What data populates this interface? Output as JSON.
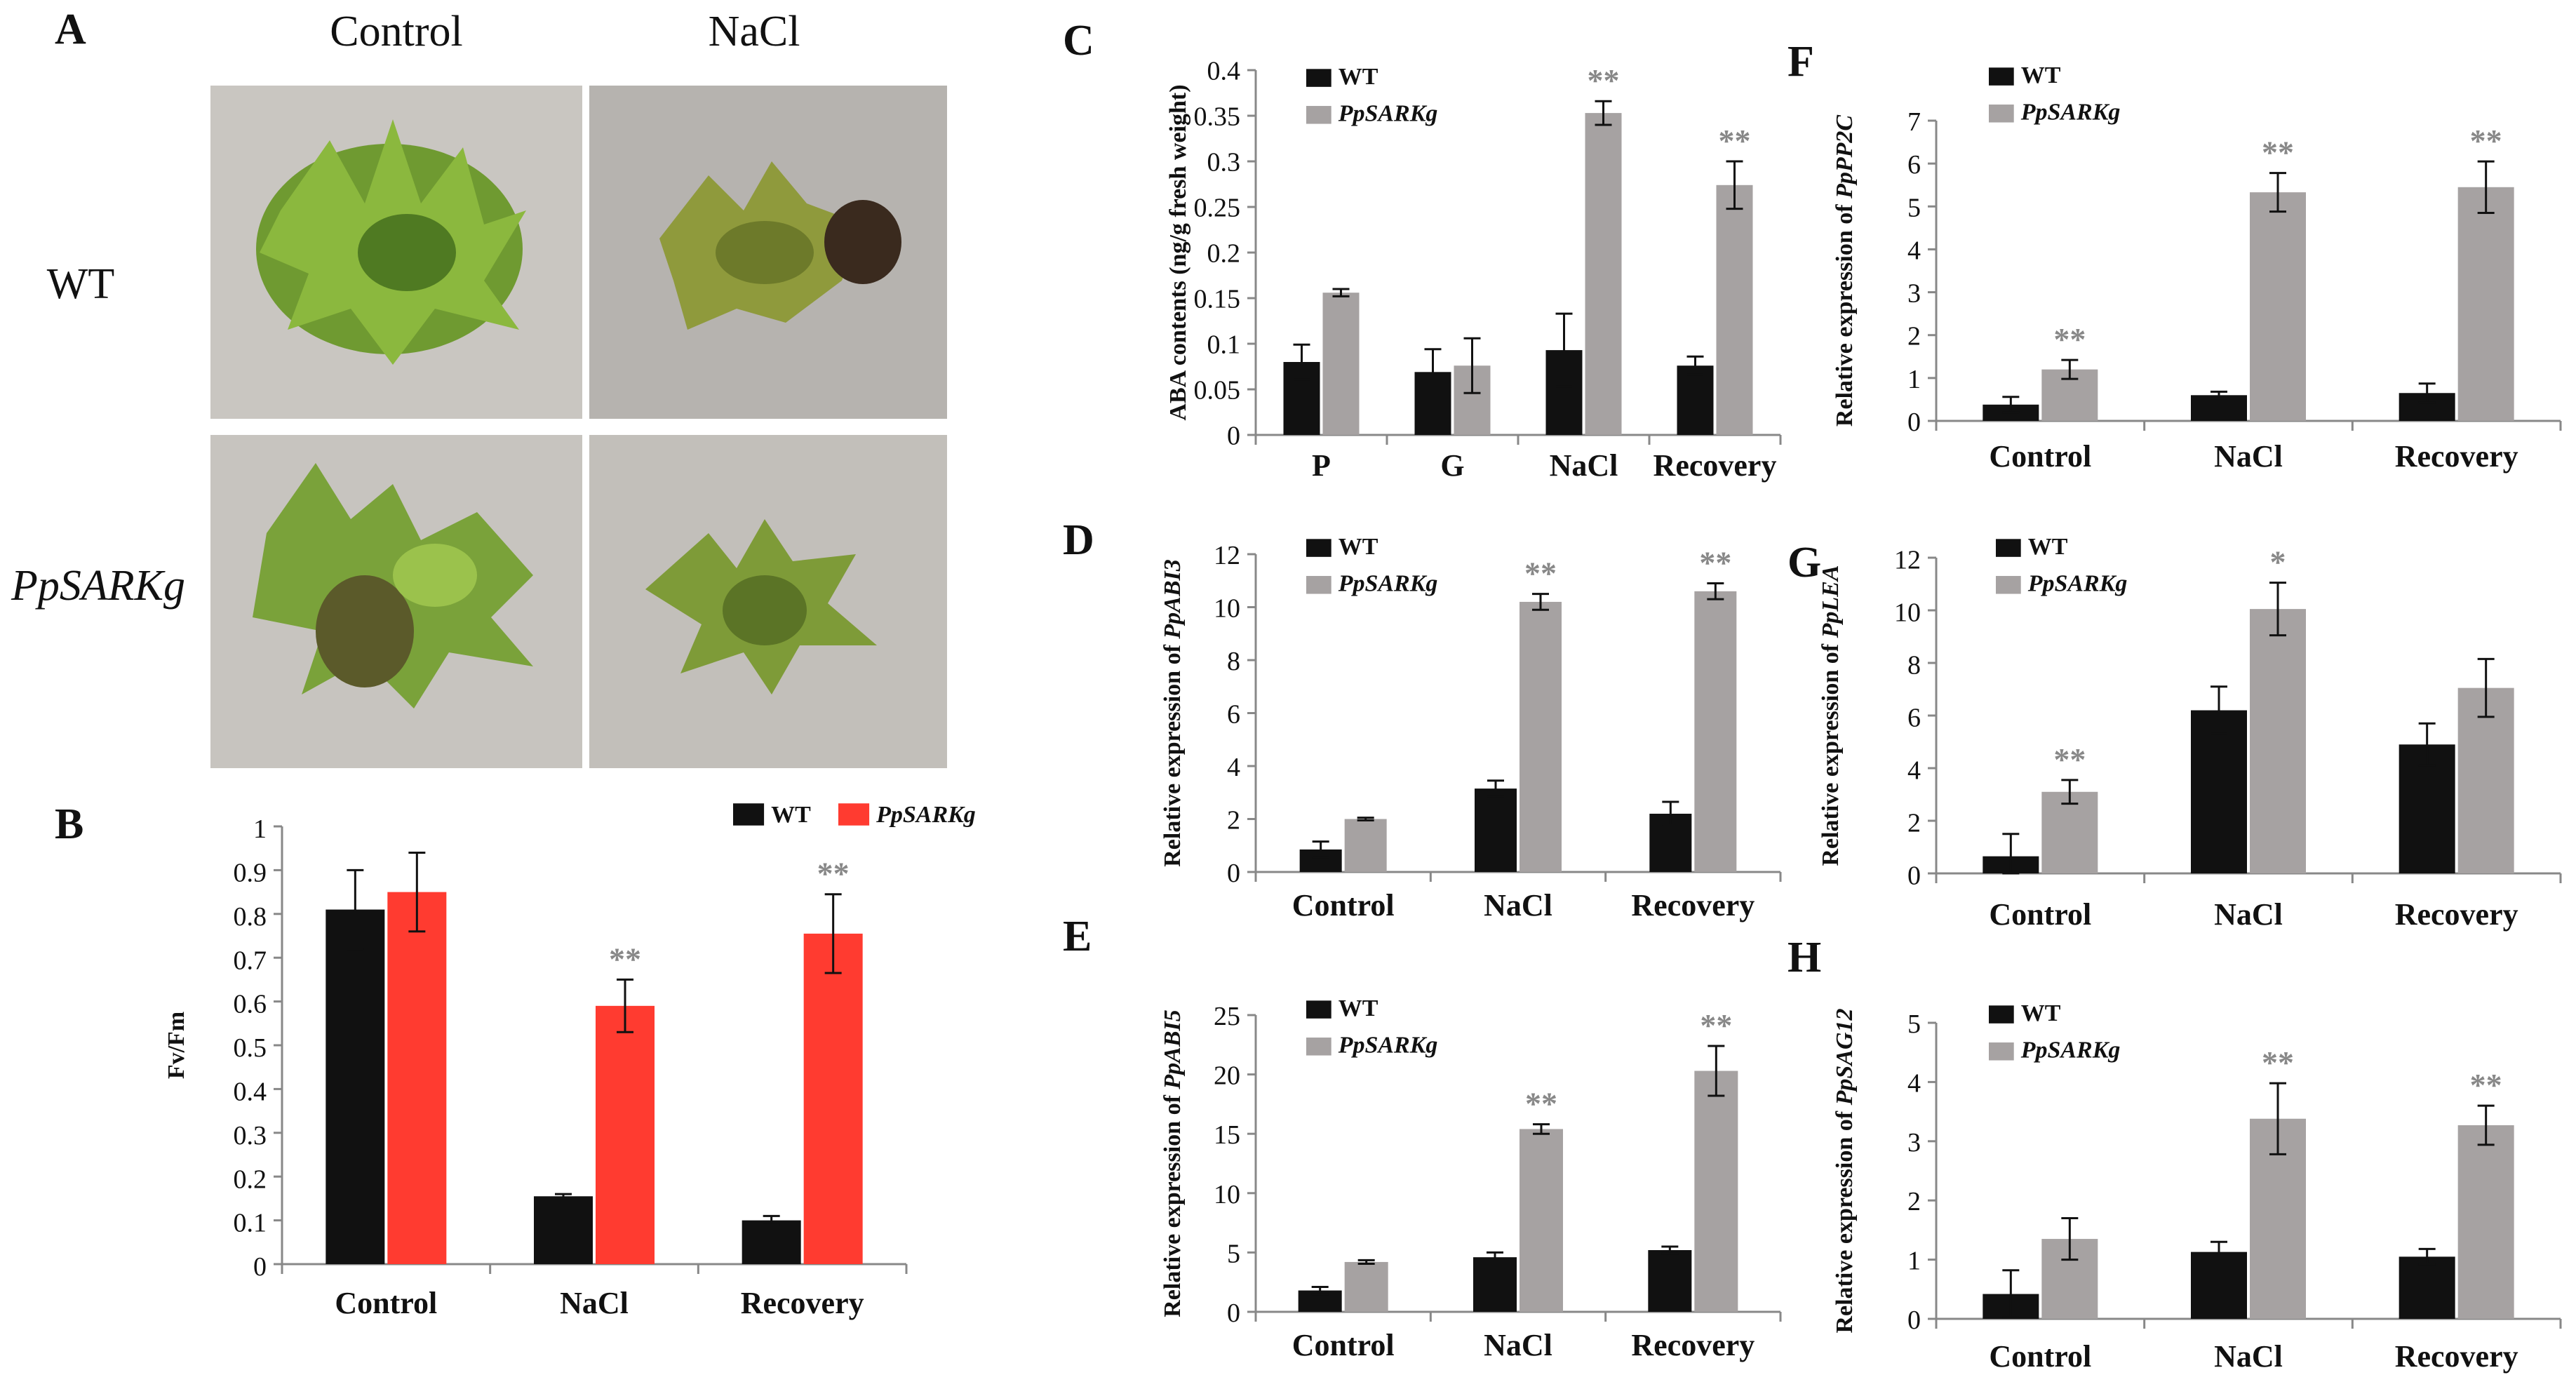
{
  "colors": {
    "wt": "#111111",
    "mutant_gray": "#a6a2a2",
    "mutant_red": "#ff3b30",
    "axis": "#888888",
    "sig": "#888888"
  },
  "photo_panel": {
    "label": "A",
    "col_labels": [
      "Control",
      "NaCl"
    ],
    "row_labels": [
      "WT",
      "PpSARKg"
    ]
  },
  "chart_data": [
    {
      "panel": "B",
      "type": "bar",
      "categories": [
        "Control",
        "NaCl",
        "Recovery"
      ],
      "series": [
        {
          "name": "WT",
          "values": [
            0.81,
            0.155,
            0.1
          ],
          "errors": [
            0.09,
            0.005,
            0.01
          ]
        },
        {
          "name": "PpSARKg",
          "values": [
            0.85,
            0.59,
            0.755
          ],
          "errors": [
            0.09,
            0.06,
            0.09
          ]
        }
      ],
      "significance": [
        "",
        "**",
        "**"
      ],
      "ylabel": "Fv/Fm",
      "ylabel_italic": "",
      "ylim": [
        0,
        1
      ],
      "yticks": [
        "0",
        "0.1",
        "0.2",
        "0.3",
        "0.4",
        "0.5",
        "0.6",
        "0.7",
        "0.8",
        "0.9",
        "1"
      ]
    },
    {
      "panel": "C",
      "type": "bar",
      "categories": [
        "P",
        "G",
        "NaCl",
        "Recovery"
      ],
      "series": [
        {
          "name": "WT",
          "values": [
            0.08,
            0.069,
            0.093,
            0.076
          ],
          "errors": [
            0.019,
            0.025,
            0.04,
            0.01
          ]
        },
        {
          "name": "PpSARKg",
          "values": [
            0.156,
            0.076,
            0.353,
            0.274
          ],
          "errors": [
            0.004,
            0.03,
            0.013,
            0.026
          ]
        }
      ],
      "significance": [
        "",
        "",
        "**",
        "**"
      ],
      "ylabel": "ABA contents (ng/g fresh weight)",
      "ylabel_italic": "",
      "ylim": [
        0,
        0.4
      ],
      "yticks": [
        "0",
        "0.05",
        "0.1",
        "0.15",
        "0.2",
        "0.25",
        "0.3",
        "0.35",
        "0.4"
      ]
    },
    {
      "panel": "D",
      "type": "bar",
      "categories": [
        "Control",
        "NaCl",
        "Recovery"
      ],
      "series": [
        {
          "name": "WT",
          "values": [
            0.85,
            3.15,
            2.2
          ],
          "errors": [
            0.3,
            0.3,
            0.45
          ]
        },
        {
          "name": "PpSARKg",
          "values": [
            2.0,
            10.2,
            10.6
          ],
          "errors": [
            0.05,
            0.3,
            0.3
          ]
        }
      ],
      "significance": [
        "",
        "**",
        "**"
      ],
      "ylabel": "Relative expression of ",
      "ylabel_italic": "PpABI3",
      "ylim": [
        0,
        12
      ],
      "yticks": [
        "0",
        "2",
        "4",
        "6",
        "8",
        "10",
        "12"
      ]
    },
    {
      "panel": "E",
      "type": "bar",
      "categories": [
        "Control",
        "NaCl",
        "Recovery"
      ],
      "series": [
        {
          "name": "WT",
          "values": [
            1.8,
            4.6,
            5.2
          ],
          "errors": [
            0.3,
            0.4,
            0.3
          ]
        },
        {
          "name": "PpSARKg",
          "values": [
            4.2,
            15.4,
            20.3
          ],
          "errors": [
            0.15,
            0.4,
            2.1
          ]
        }
      ],
      "significance": [
        "",
        "**",
        "**"
      ],
      "ylabel": "Relative expression of ",
      "ylabel_italic": "PpABI5",
      "ylim": [
        0,
        25
      ],
      "yticks": [
        "0",
        "5",
        "10",
        "15",
        "20",
        "25"
      ]
    },
    {
      "panel": "F",
      "type": "bar",
      "categories": [
        "Control",
        "NaCl",
        "Recovery"
      ],
      "series": [
        {
          "name": "WT",
          "values": [
            0.38,
            0.6,
            0.65
          ],
          "errors": [
            0.18,
            0.08,
            0.22
          ]
        },
        {
          "name": "PpSARKg",
          "values": [
            1.2,
            5.33,
            5.45
          ],
          "errors": [
            0.22,
            0.45,
            0.6
          ]
        }
      ],
      "significance": [
        "**",
        "**",
        "**"
      ],
      "ylabel": "Relative expression of ",
      "ylabel_italic": "PpPP2C",
      "ylim": [
        0,
        7
      ],
      "yticks": [
        "0",
        "1",
        "2",
        "3",
        "4",
        "5",
        "6",
        "7"
      ]
    },
    {
      "panel": "G",
      "type": "bar",
      "categories": [
        "Control",
        "NaCl",
        "Recovery"
      ],
      "series": [
        {
          "name": "WT",
          "values": [
            0.65,
            6.2,
            4.9
          ],
          "errors": [
            0.85,
            0.9,
            0.8
          ]
        },
        {
          "name": "PpSARKg",
          "values": [
            3.1,
            10.05,
            7.05
          ],
          "errors": [
            0.45,
            1.0,
            1.1
          ]
        }
      ],
      "significance": [
        "**",
        "*",
        ""
      ],
      "ylabel": "Relative expression of ",
      "ylabel_italic": "PpLEA",
      "ylim": [
        0,
        12
      ],
      "yticks": [
        "0",
        "2",
        "4",
        "6",
        "8",
        "10",
        "12"
      ]
    },
    {
      "panel": "H",
      "type": "bar",
      "categories": [
        "Control",
        "NaCl",
        "Recovery"
      ],
      "series": [
        {
          "name": "WT",
          "values": [
            0.42,
            1.13,
            1.05
          ],
          "errors": [
            0.4,
            0.17,
            0.13
          ]
        },
        {
          "name": "PpSARKg",
          "values": [
            1.35,
            3.38,
            3.27
          ],
          "errors": [
            0.35,
            0.6,
            0.33
          ]
        }
      ],
      "significance": [
        "",
        "**",
        "**"
      ],
      "ylabel": "Relative expression of ",
      "ylabel_italic": "PpSAG12",
      "ylim": [
        0,
        5
      ],
      "yticks": [
        "0",
        "1",
        "2",
        "3",
        "4",
        "5"
      ]
    }
  ]
}
